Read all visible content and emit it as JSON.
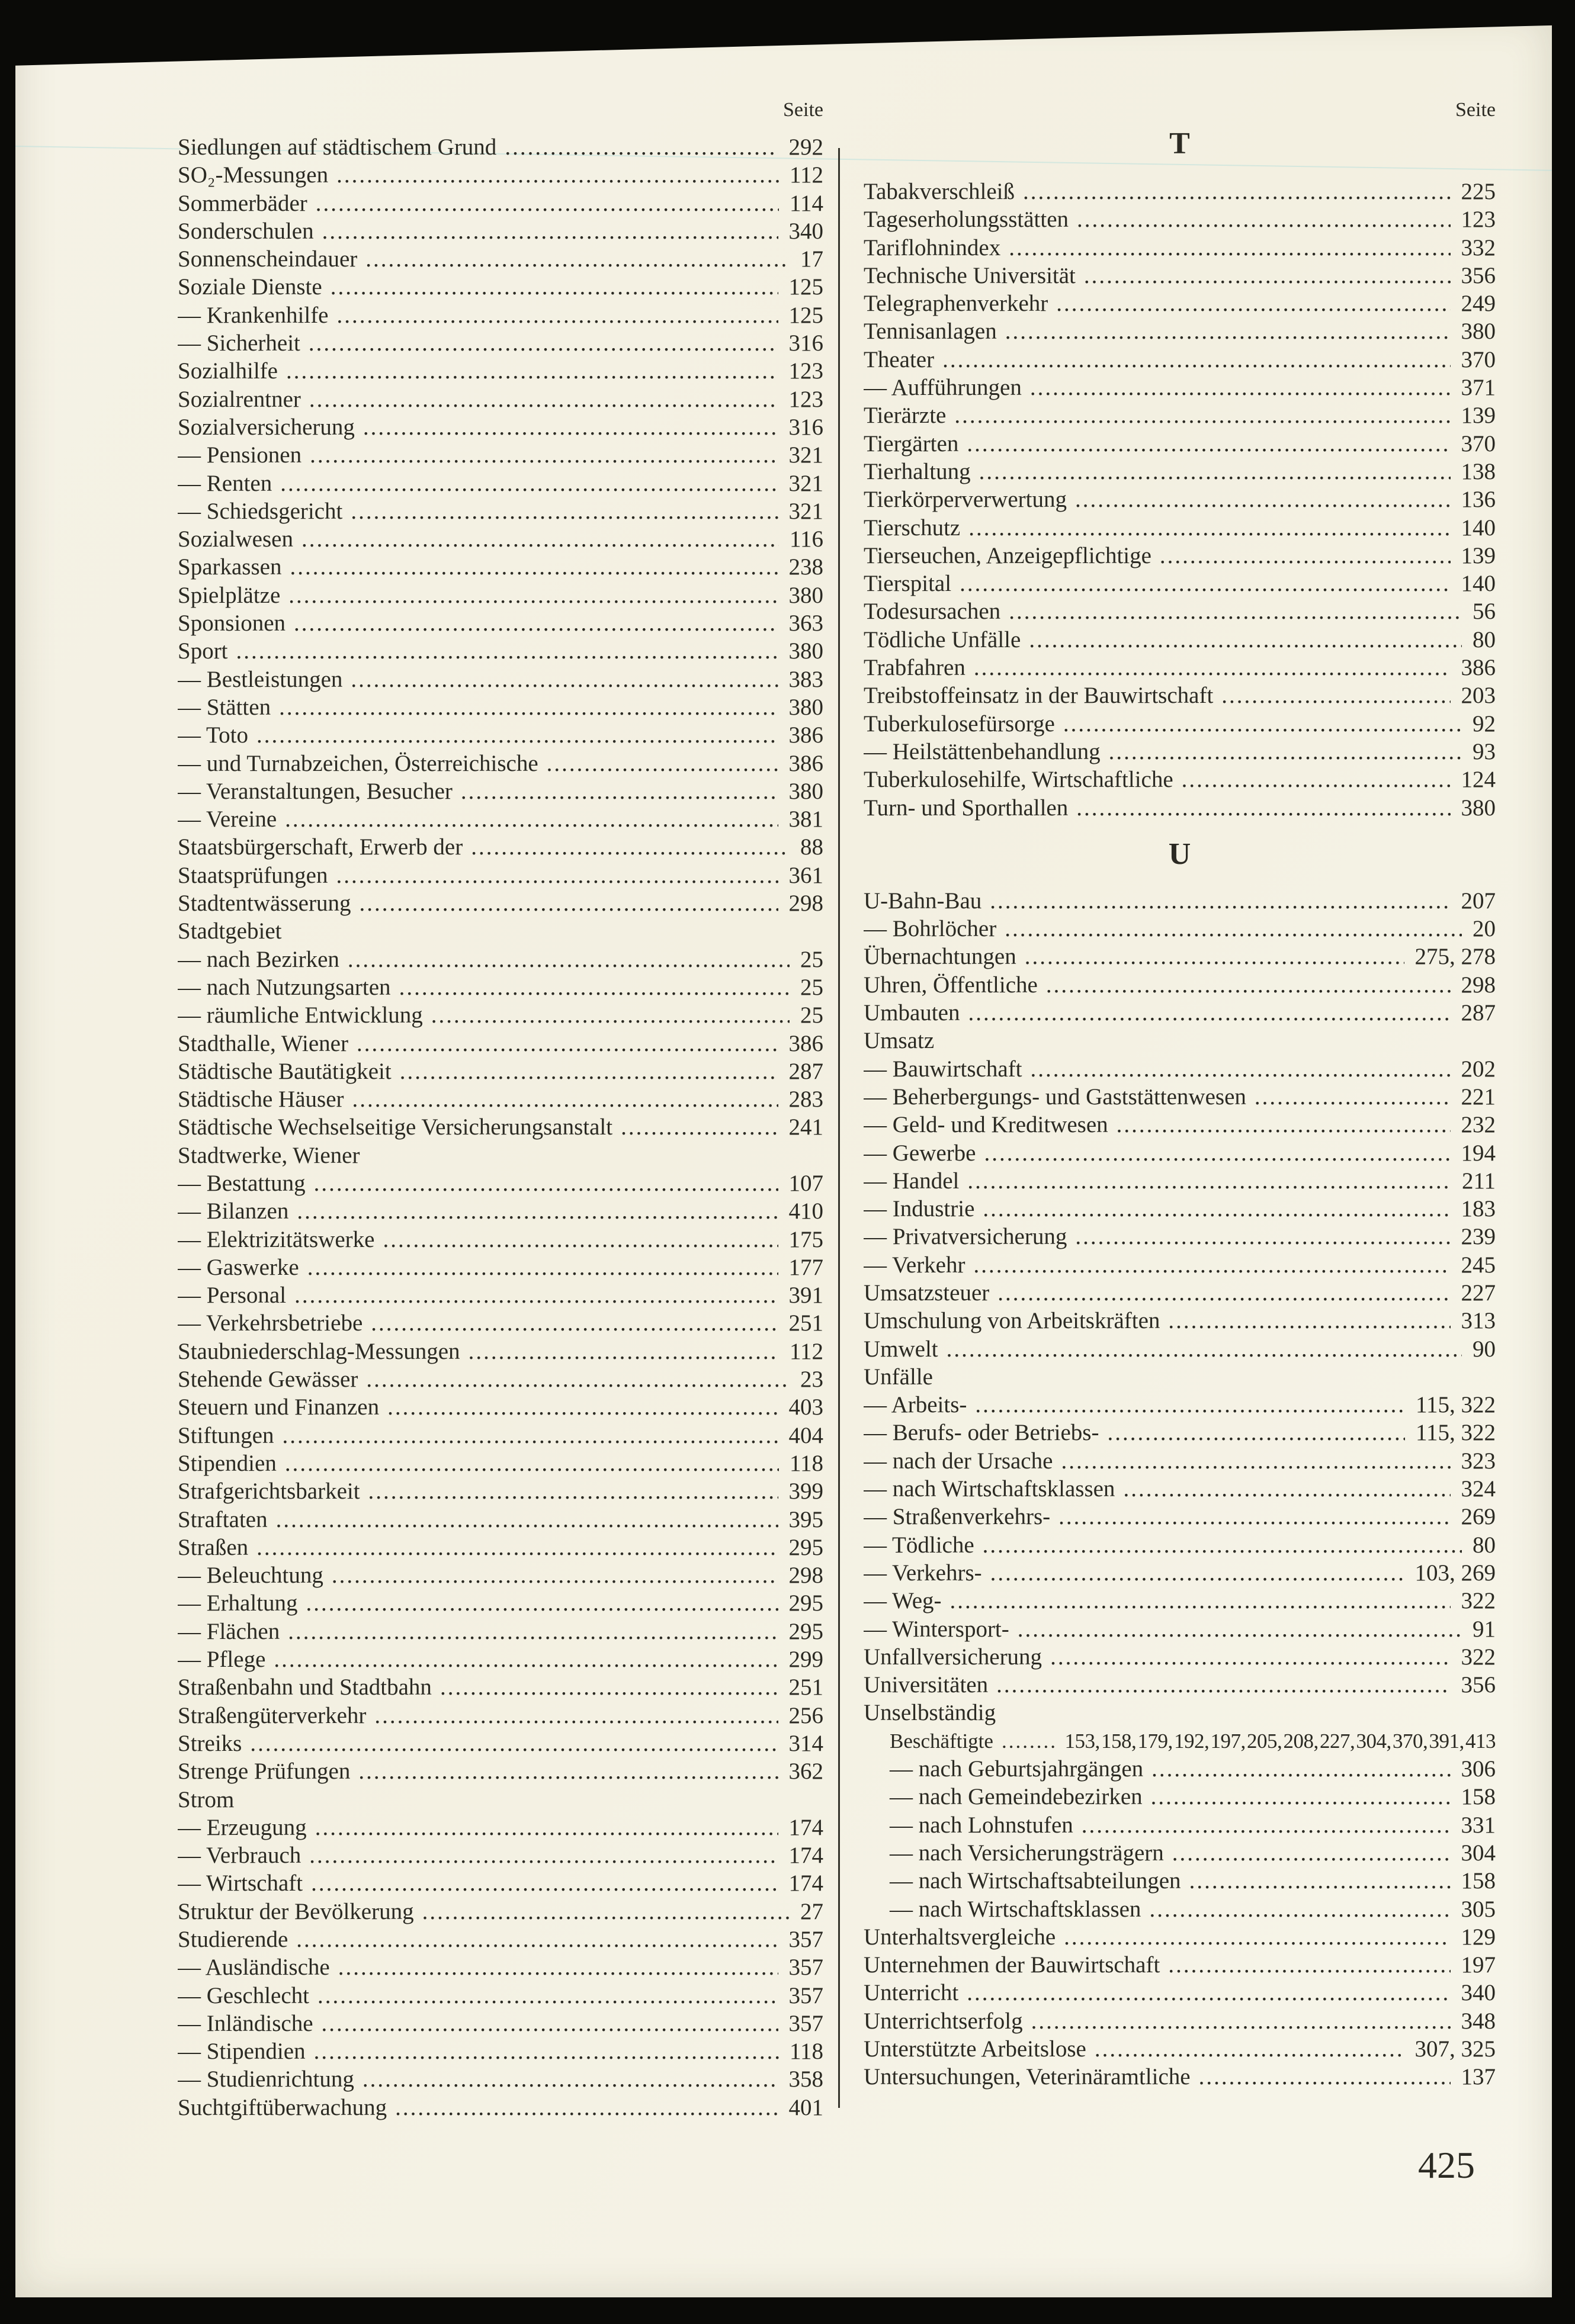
{
  "colors": {
    "background": "#0a0a07",
    "paper": "#f3f0e1",
    "ink": "#2b2a23",
    "divider": "#35342c"
  },
  "page_number": "425",
  "left_column": {
    "seite_label": "Seite",
    "entries": [
      {
        "label": "Siedlungen auf städtischem Grund",
        "page": "292"
      },
      {
        "label": "SO₂-Messungen",
        "page": "112"
      },
      {
        "label": "Sommerbäder",
        "page": "114"
      },
      {
        "label": "Sonderschulen",
        "page": "340"
      },
      {
        "label": "Sonnenscheindauer",
        "page": "17"
      },
      {
        "label": "Soziale Dienste",
        "page": "125"
      },
      {
        "label": "— Krankenhilfe",
        "page": "125"
      },
      {
        "label": "— Sicherheit",
        "page": "316"
      },
      {
        "label": "Sozialhilfe",
        "page": "123"
      },
      {
        "label": "Sozialrentner",
        "page": "123"
      },
      {
        "label": "Sozialversicherung",
        "page": "316"
      },
      {
        "label": "— Pensionen",
        "page": "321"
      },
      {
        "label": "— Renten",
        "page": "321"
      },
      {
        "label": "— Schiedsgericht",
        "page": "321"
      },
      {
        "label": "Sozialwesen",
        "page": "116"
      },
      {
        "label": "Sparkassen",
        "page": "238"
      },
      {
        "label": "Spielplätze",
        "page": "380"
      },
      {
        "label": "Sponsionen",
        "page": "363"
      },
      {
        "label": "Sport",
        "page": "380"
      },
      {
        "label": "— Bestleistungen",
        "page": "383"
      },
      {
        "label": "— Stätten",
        "page": "380"
      },
      {
        "label": "— Toto",
        "page": "386"
      },
      {
        "label": "— und Turnabzeichen, Österreichische",
        "page": "386"
      },
      {
        "label": "— Veranstaltungen, Besucher",
        "page": "380"
      },
      {
        "label": "— Vereine",
        "page": "381"
      },
      {
        "label": "Staatsbürgerschaft, Erwerb der",
        "page": "88"
      },
      {
        "label": "Staatsprüfungen",
        "page": "361"
      },
      {
        "label": "Stadtentwässerung",
        "page": "298"
      },
      {
        "label": "Stadtgebiet"
      },
      {
        "label": "— nach Bezirken",
        "page": "25"
      },
      {
        "label": "— nach Nutzungsarten",
        "page": "25"
      },
      {
        "label": "— räumliche Entwicklung",
        "page": "25"
      },
      {
        "label": "Stadthalle, Wiener",
        "page": "386"
      },
      {
        "label": "Städtische Bautätigkeit",
        "page": "287"
      },
      {
        "label": "Städtische Häuser",
        "page": "283"
      },
      {
        "label": "Städtische Wechselseitige Versicherungsanstalt",
        "page": "241"
      },
      {
        "label": "Stadtwerke, Wiener"
      },
      {
        "label": "— Bestattung",
        "page": "107"
      },
      {
        "label": "— Bilanzen",
        "page": "410"
      },
      {
        "label": "— Elektrizitätswerke",
        "page": "175"
      },
      {
        "label": "— Gaswerke",
        "page": "177"
      },
      {
        "label": "— Personal",
        "page": "391"
      },
      {
        "label": "— Verkehrsbetriebe",
        "page": "251"
      },
      {
        "label": "Staubniederschlag-Messungen",
        "page": "112"
      },
      {
        "label": "Stehende Gewässer",
        "page": "23"
      },
      {
        "label": "Steuern und Finanzen",
        "page": "403"
      },
      {
        "label": "Stiftungen",
        "page": "404"
      },
      {
        "label": "Stipendien",
        "page": "118"
      },
      {
        "label": "Strafgerichtsbarkeit",
        "page": "399"
      },
      {
        "label": "Straftaten",
        "page": "395"
      },
      {
        "label": "Straßen",
        "page": "295"
      },
      {
        "label": "— Beleuchtung",
        "page": "298"
      },
      {
        "label": "— Erhaltung",
        "page": "295"
      },
      {
        "label": "— Flächen",
        "page": "295"
      },
      {
        "label": "— Pflege",
        "page": "299"
      },
      {
        "label": "Straßenbahn und Stadtbahn",
        "page": "251"
      },
      {
        "label": "Straßengüterverkehr",
        "page": "256"
      },
      {
        "label": "Streiks",
        "page": "314"
      },
      {
        "label": "Strenge Prüfungen",
        "page": "362"
      },
      {
        "label": "Strom"
      },
      {
        "label": "— Erzeugung",
        "page": "174"
      },
      {
        "label": "— Verbrauch",
        "page": "174"
      },
      {
        "label": "— Wirtschaft",
        "page": "174"
      },
      {
        "label": "Struktur der Bevölkerung",
        "page": "27"
      },
      {
        "label": "Studierende",
        "page": "357"
      },
      {
        "label": "— Ausländische",
        "page": "357"
      },
      {
        "label": "— Geschlecht",
        "page": "357"
      },
      {
        "label": "— Inländische",
        "page": "357"
      },
      {
        "label": "— Stipendien",
        "page": "118"
      },
      {
        "label": "— Studienrichtung",
        "page": "358"
      },
      {
        "label": "Suchtgiftüberwachung",
        "page": "401"
      }
    ]
  },
  "right_column": {
    "seite_label": "Seite",
    "sections": [
      {
        "header": "T",
        "entries": [
          {
            "label": "Tabakverschleiß",
            "page": "225"
          },
          {
            "label": "Tageserholungsstätten",
            "page": "123"
          },
          {
            "label": "Tariflohnindex",
            "page": "332"
          },
          {
            "label": "Technische Universität",
            "page": "356"
          },
          {
            "label": "Telegraphenverkehr",
            "page": "249"
          },
          {
            "label": "Tennisanlagen",
            "page": "380"
          },
          {
            "label": "Theater",
            "page": "370"
          },
          {
            "label": "— Aufführungen",
            "page": "371"
          },
          {
            "label": "Tierärzte",
            "page": "139"
          },
          {
            "label": "Tiergärten",
            "page": "370"
          },
          {
            "label": "Tierhaltung",
            "page": "138"
          },
          {
            "label": "Tierkörperverwertung",
            "page": "136"
          },
          {
            "label": "Tierschutz",
            "page": "140"
          },
          {
            "label": "Tierseuchen, Anzeigepflichtige",
            "page": "139"
          },
          {
            "label": "Tierspital",
            "page": "140"
          },
          {
            "label": "Todesursachen",
            "page": "56"
          },
          {
            "label": "Tödliche Unfälle",
            "page": "80"
          },
          {
            "label": "Trabfahren",
            "page": "386"
          },
          {
            "label": "Treibstoffeinsatz in der Bauwirtschaft",
            "page": "203"
          },
          {
            "label": "Tuberkulosefürsorge",
            "page": "92"
          },
          {
            "label": "— Heilstättenbehandlung",
            "page": "93"
          },
          {
            "label": "Tuberkulosehilfe, Wirtschaftliche",
            "page": "124"
          },
          {
            "label": "Turn- und Sporthallen",
            "page": "380"
          }
        ]
      },
      {
        "header": "U",
        "entries": [
          {
            "label": "U-Bahn-Bau",
            "page": "207"
          },
          {
            "label": "— Bohrlöcher",
            "page": "20"
          },
          {
            "label": "Übernachtungen",
            "page": "275, 278"
          },
          {
            "label": "Uhren, Öffentliche",
            "page": "298"
          },
          {
            "label": "Umbauten",
            "page": "287"
          },
          {
            "label": "Umsatz"
          },
          {
            "label": "— Bauwirtschaft",
            "page": "202"
          },
          {
            "label": "— Beherbergungs- und Gaststättenwesen",
            "page": "221"
          },
          {
            "label": "— Geld- und Kreditwesen",
            "page": "232"
          },
          {
            "label": "— Gewerbe",
            "page": "194"
          },
          {
            "label": "— Handel",
            "page": "211"
          },
          {
            "label": "— Industrie",
            "page": "183"
          },
          {
            "label": "— Privatversicherung",
            "page": "239"
          },
          {
            "label": "— Verkehr",
            "page": "245"
          },
          {
            "label": "Umsatzsteuer",
            "page": "227"
          },
          {
            "label": "Umschulung von Arbeitskräften",
            "page": "313"
          },
          {
            "label": "Umwelt",
            "page": "90"
          },
          {
            "label": "Unfälle"
          },
          {
            "label": "— Arbeits-",
            "page": "115, 322"
          },
          {
            "label": "— Berufs- oder Betriebs-",
            "page": "115, 322"
          },
          {
            "label": "— nach der Ursache",
            "page": "323"
          },
          {
            "label": "— nach Wirtschaftsklassen",
            "page": "324"
          },
          {
            "label": "— Straßenverkehrs-",
            "page": "269"
          },
          {
            "label": "— Tödliche",
            "page": "80"
          },
          {
            "label": "— Verkehrs-",
            "page": "103, 269"
          },
          {
            "label": "— Weg-",
            "page": "322"
          },
          {
            "label": "— Wintersport-",
            "page": "91"
          },
          {
            "label": "Unfallversicherung",
            "page": "322"
          },
          {
            "label": "Universitäten",
            "page": "356"
          },
          {
            "label": "Unselbständig"
          },
          {
            "label": "Beschäftigte",
            "page": "153, 158, 179, 192, 197, 205, 208, 227, 304, 370, 391, 413",
            "indent": true
          },
          {
            "label": "— nach Geburtsjahrgängen",
            "page": "306",
            "indent": true
          },
          {
            "label": "— nach Gemeindebezirken",
            "page": "158",
            "indent": true
          },
          {
            "label": "— nach Lohnstufen",
            "page": "331",
            "indent": true
          },
          {
            "label": "— nach Versicherungsträgern",
            "page": "304",
            "indent": true
          },
          {
            "label": "— nach Wirtschaftsabteilungen",
            "page": "158",
            "indent": true
          },
          {
            "label": "— nach Wirtschaftsklassen",
            "page": "305",
            "indent": true
          },
          {
            "label": "Unterhaltsvergleiche",
            "page": "129"
          },
          {
            "label": "Unternehmen der Bauwirtschaft",
            "page": "197"
          },
          {
            "label": "Unterricht",
            "page": "340"
          },
          {
            "label": "Unterrichtserfolg",
            "page": "348"
          },
          {
            "label": "Unterstützte Arbeitslose",
            "page": "307, 325"
          },
          {
            "label": "Untersuchungen, Veterinäramtliche",
            "page": "137"
          }
        ]
      }
    ]
  }
}
